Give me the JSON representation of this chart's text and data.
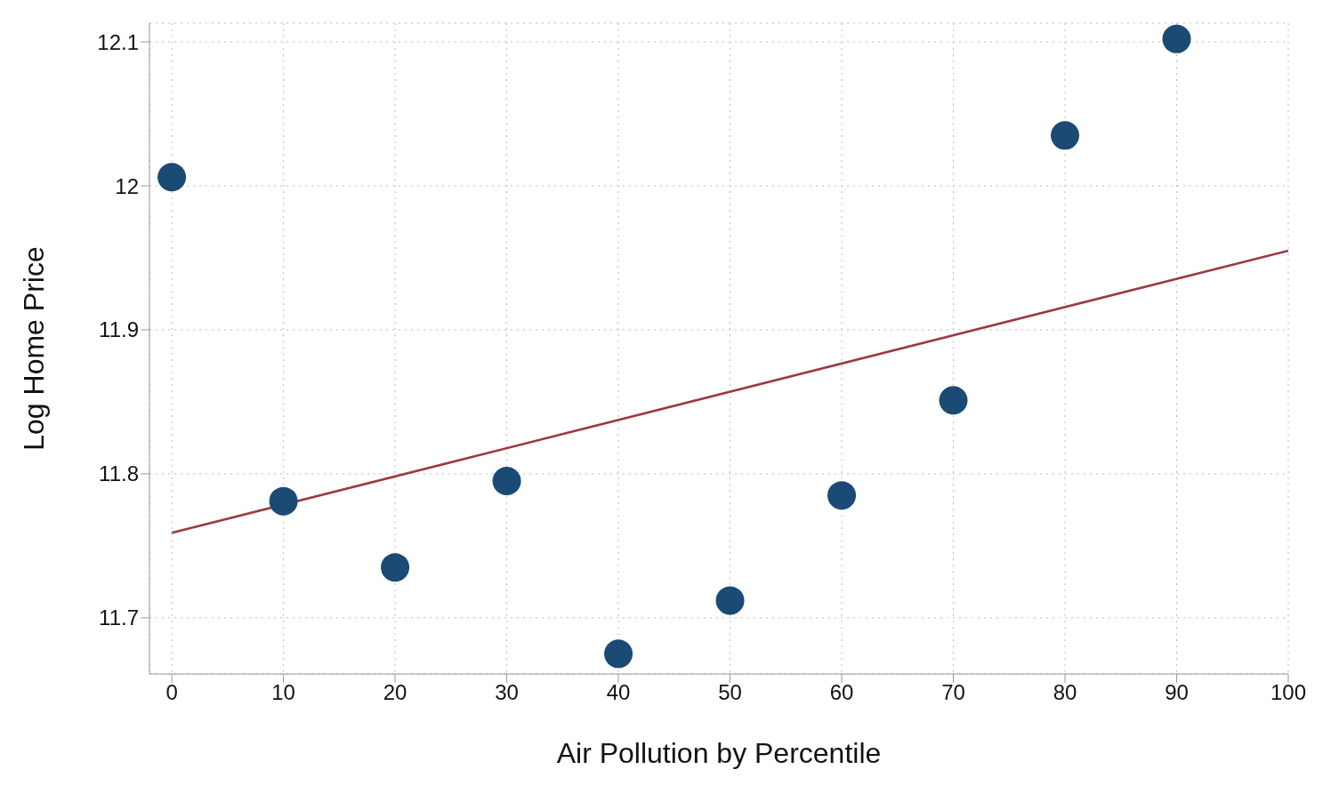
{
  "chart_data": {
    "type": "scatter",
    "xlabel": "Air Pollution by Percentile",
    "ylabel": "Log Home Price",
    "x": [
      0,
      10,
      20,
      30,
      40,
      50,
      60,
      70,
      80,
      90
    ],
    "series": [
      {
        "color": "#1b4a74",
        "values": [
          12.006,
          11.781,
          11.735,
          11.795,
          11.675,
          11.712,
          11.785,
          11.851,
          12.035,
          12.102
        ]
      },
      {
        "type": "line",
        "marker": "none",
        "color": "#9b3a40",
        "x": [
          0,
          100
        ],
        "values": [
          11.759,
          11.955
        ]
      }
    ],
    "xlim": [
      -2,
      100
    ],
    "ylim": [
      11.661,
      12.113
    ],
    "xticks": [
      0,
      10,
      20,
      30,
      40,
      50,
      60,
      70,
      80,
      90,
      100
    ],
    "yticks": [
      11.7,
      11.8,
      11.9,
      12,
      12.1
    ],
    "grid": true,
    "marker": "circle",
    "line_style": "solid"
  }
}
